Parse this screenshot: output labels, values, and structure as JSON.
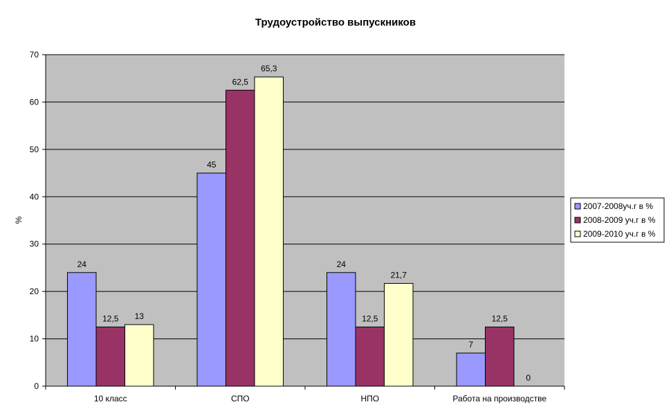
{
  "chart_data": {
    "type": "bar",
    "title": "Трудоустройство выпускников",
    "ylabel": "%",
    "xlabel": "",
    "ylim": [
      0,
      70
    ],
    "yticks": [
      0,
      10,
      20,
      30,
      40,
      50,
      60,
      70
    ],
    "grid": true,
    "legend_position": "right",
    "categories": [
      "10 класс",
      "СПО",
      "НПО",
      "Работа на производстве"
    ],
    "series": [
      {
        "name": "2007-2008уч.г в %",
        "color": "#9999ff",
        "values": [
          24,
          45,
          24,
          7
        ],
        "labels": [
          "24",
          "45",
          "24",
          "7"
        ]
      },
      {
        "name": "2008-2009 уч.г в %",
        "color": "#993366",
        "values": [
          12.5,
          62.5,
          12.5,
          12.5
        ],
        "labels": [
          "12,5",
          "62,5",
          "12,5",
          "12,5"
        ]
      },
      {
        "name": "2009-2010 уч.г в %",
        "color": "#ffffcc",
        "values": [
          13,
          65.3,
          21.7,
          0
        ],
        "labels": [
          "13",
          "65,3",
          "21,7",
          "0"
        ]
      }
    ],
    "plot_background": "#c0c0c0"
  }
}
